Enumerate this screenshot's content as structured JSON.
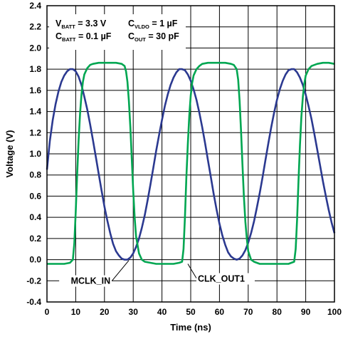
{
  "chart_data": {
    "type": "line",
    "xlabel": "Time (ns)",
    "ylabel": "Voltage (V)",
    "xlim": [
      0,
      100
    ],
    "ylim": [
      -0.4,
      2.4
    ],
    "x_ticks": [
      "0",
      "10",
      "20",
      "30",
      "40",
      "50",
      "60",
      "70",
      "80",
      "90",
      "100"
    ],
    "y_ticks": [
      "-0.4",
      "-0.2",
      "0.0",
      "0.2",
      "0.4",
      "0.6",
      "0.8",
      "1.0",
      "1.2",
      "1.4",
      "1.6",
      "1.8",
      "2.0",
      "2.2",
      "2.4"
    ],
    "grid": true,
    "annotations": {
      "line1": {
        "left_main": "V",
        "left_sub": "BATT",
        "left_val": " = 3.3 V",
        "right_main": "C",
        "right_sub": "VLDO",
        "right_val": " = 1 µF"
      },
      "line2": {
        "left_main": "C",
        "left_sub": "BATT",
        "left_val": " = 0.1 µF",
        "right_main": "C",
        "right_sub": "OUT",
        "right_val": " = 30 pF"
      }
    },
    "series": [
      {
        "name": "MCLK_IN",
        "color": "#2b3990",
        "x": [
          0,
          1,
          2,
          3,
          4,
          5,
          6,
          7,
          8,
          9,
          10,
          11,
          12,
          13,
          14,
          15,
          16,
          17,
          18,
          19,
          20,
          21,
          22,
          23,
          24,
          25,
          26,
          27,
          28,
          29,
          30,
          31,
          32,
          33,
          34,
          35,
          36,
          37,
          38,
          39,
          40,
          41,
          42,
          43,
          44,
          45,
          46,
          47,
          48,
          49,
          50,
          51,
          52,
          53,
          54,
          55,
          56,
          57,
          58,
          59,
          60,
          61,
          62,
          63,
          64,
          65,
          66,
          67,
          68,
          69,
          70,
          71,
          72,
          73,
          74,
          75,
          76,
          77,
          78,
          79,
          80,
          81,
          82,
          83,
          84,
          85,
          86,
          87,
          88,
          89,
          90,
          91,
          92,
          93,
          94,
          95,
          96,
          97,
          98,
          99,
          100
        ],
        "y": [
          0.85,
          1.12,
          1.32,
          1.47,
          1.59,
          1.68,
          1.74,
          1.78,
          1.8,
          1.8,
          1.78,
          1.73,
          1.65,
          1.54,
          1.42,
          1.28,
          1.13,
          0.97,
          0.81,
          0.65,
          0.5,
          0.37,
          0.25,
          0.15,
          0.08,
          0.04,
          0.01,
          0.0,
          0.0,
          0.02,
          0.06,
          0.12,
          0.2,
          0.3,
          0.42,
          0.56,
          0.71,
          0.87,
          1.03,
          1.18,
          1.32,
          1.45,
          1.56,
          1.65,
          1.72,
          1.77,
          1.8,
          1.8,
          1.79,
          1.75,
          1.69,
          1.61,
          1.51,
          1.39,
          1.25,
          1.1,
          0.94,
          0.78,
          0.62,
          0.47,
          0.34,
          0.23,
          0.14,
          0.07,
          0.03,
          0.01,
          0.0,
          0.01,
          0.04,
          0.09,
          0.16,
          0.25,
          0.36,
          0.49,
          0.63,
          0.78,
          0.94,
          1.1,
          1.25,
          1.39,
          1.51,
          1.61,
          1.69,
          1.75,
          1.79,
          1.8,
          1.8,
          1.77,
          1.72,
          1.65,
          1.56,
          1.45,
          1.33,
          1.19,
          1.04,
          0.89,
          0.74,
          0.6,
          0.47,
          0.35,
          0.25
        ]
      },
      {
        "name": "CLK_OUT1",
        "color": "#00a651",
        "x": [
          0,
          2,
          4,
          6,
          8,
          9,
          9.5,
          10,
          10.5,
          11,
          11.5,
          12,
          12.5,
          13,
          14,
          15,
          16,
          18,
          20,
          22,
          24,
          26,
          27,
          27.5,
          28,
          28.5,
          29,
          29.5,
          30,
          30.5,
          31,
          32,
          33,
          34,
          36,
          38,
          40,
          42,
          44,
          46,
          47,
          47.5,
          48,
          48.5,
          49,
          49.5,
          50,
          50.5,
          51,
          52,
          53,
          54,
          56,
          58,
          60,
          62,
          64,
          65,
          66,
          66.5,
          67,
          67.5,
          68,
          68.5,
          69,
          69.5,
          70,
          71,
          72,
          73,
          74,
          76,
          78,
          80,
          82,
          84,
          85,
          86,
          86.5,
          87,
          87.5,
          88,
          88.5,
          89,
          89.5,
          90,
          91,
          92,
          94,
          96,
          98,
          100
        ],
        "y": [
          -0.04,
          -0.04,
          -0.04,
          -0.04,
          -0.03,
          0.0,
          0.15,
          0.45,
          0.8,
          1.12,
          1.38,
          1.56,
          1.68,
          1.75,
          1.81,
          1.84,
          1.85,
          1.86,
          1.86,
          1.86,
          1.86,
          1.85,
          1.83,
          1.78,
          1.68,
          1.5,
          1.25,
          0.95,
          0.65,
          0.4,
          0.22,
          0.06,
          0.0,
          -0.02,
          -0.03,
          -0.04,
          -0.04,
          -0.04,
          -0.04,
          -0.03,
          -0.02,
          0.1,
          0.4,
          0.78,
          1.1,
          1.36,
          1.55,
          1.67,
          1.74,
          1.8,
          1.83,
          1.85,
          1.86,
          1.86,
          1.86,
          1.86,
          1.85,
          1.84,
          1.8,
          1.7,
          1.5,
          1.22,
          0.9,
          0.6,
          0.36,
          0.2,
          0.08,
          0.0,
          -0.02,
          -0.03,
          -0.04,
          -0.04,
          -0.04,
          -0.04,
          -0.04,
          -0.04,
          -0.03,
          -0.02,
          0.1,
          0.38,
          0.75,
          1.08,
          1.35,
          1.54,
          1.66,
          1.74,
          1.8,
          1.83,
          1.85,
          1.86,
          1.86,
          1.85
        ]
      }
    ],
    "series_labels": [
      {
        "text": "MCLK_IN",
        "x": 28.5,
        "y": 0.0
      },
      {
        "text": "CLK_OUT1",
        "x": 49,
        "y": -0.04
      }
    ]
  }
}
